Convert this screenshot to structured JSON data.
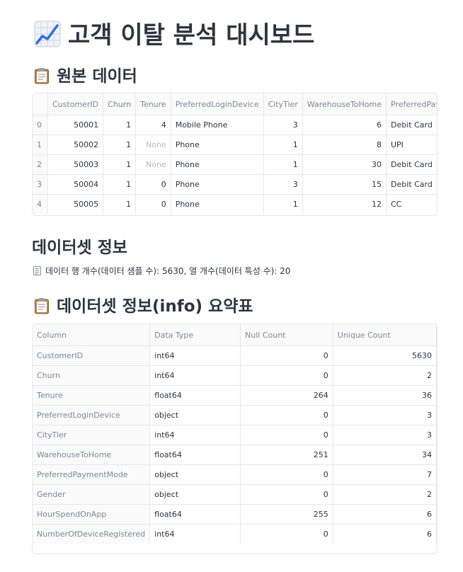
{
  "page": {
    "title": "고객 이탈 분석 대시보드",
    "title_icon": "chart-increasing-icon"
  },
  "raw_section": {
    "title": "원본 데이터",
    "icon": "clipboard-icon",
    "columns": [
      "",
      "CustomerID",
      "Churn",
      "Tenure",
      "PreferredLoginDevice",
      "CityTier",
      "WarehouseToHome",
      "PreferredPaymentMode"
    ],
    "rows": [
      {
        "idx": "0",
        "CustomerID": "50001",
        "Churn": "1",
        "Tenure": "4",
        "PreferredLoginDevice": "Mobile Phone",
        "CityTier": "3",
        "WarehouseToHome": "6",
        "PreferredPaymentMode": "Debit Card"
      },
      {
        "idx": "1",
        "CustomerID": "50002",
        "Churn": "1",
        "Tenure": "None",
        "PreferredLoginDevice": "Phone",
        "CityTier": "1",
        "WarehouseToHome": "8",
        "PreferredPaymentMode": "UPI"
      },
      {
        "idx": "2",
        "CustomerID": "50003",
        "Churn": "1",
        "Tenure": "None",
        "PreferredLoginDevice": "Phone",
        "CityTier": "1",
        "WarehouseToHome": "30",
        "PreferredPaymentMode": "Debit Card"
      },
      {
        "idx": "3",
        "CustomerID": "50004",
        "Churn": "1",
        "Tenure": "0",
        "PreferredLoginDevice": "Phone",
        "CityTier": "3",
        "WarehouseToHome": "15",
        "PreferredPaymentMode": "Debit Card"
      },
      {
        "idx": "4",
        "CustomerID": "50005",
        "Churn": "1",
        "Tenure": "0",
        "PreferredLoginDevice": "Phone",
        "CityTier": "1",
        "WarehouseToHome": "12",
        "PreferredPaymentMode": "CC"
      }
    ]
  },
  "info_section": {
    "title": "데이터셋 정보",
    "caption_icon": "document-icon",
    "caption": "데이터 행 개수(데이터 샘플 수): 5630, 열 개수(데이터 특성 수): 20"
  },
  "summary_section": {
    "title": "데이터셋 정보(info) 요약표",
    "icon": "clipboard-icon",
    "columns": [
      "Column",
      "Data Type",
      "Null Count",
      "Unique Count"
    ],
    "rows": [
      {
        "column": "CustomerID",
        "dtype": "int64",
        "null": "0",
        "unique": "5630"
      },
      {
        "column": "Churn",
        "dtype": "int64",
        "null": "0",
        "unique": "2"
      },
      {
        "column": "Tenure",
        "dtype": "float64",
        "null": "264",
        "unique": "36"
      },
      {
        "column": "PreferredLoginDevice",
        "dtype": "object",
        "null": "0",
        "unique": "3"
      },
      {
        "column": "CityTier",
        "dtype": "int64",
        "null": "0",
        "unique": "3"
      },
      {
        "column": "WarehouseToHome",
        "dtype": "float64",
        "null": "251",
        "unique": "34"
      },
      {
        "column": "PreferredPaymentMode",
        "dtype": "object",
        "null": "0",
        "unique": "7"
      },
      {
        "column": "Gender",
        "dtype": "object",
        "null": "0",
        "unique": "2"
      },
      {
        "column": "HourSpendOnApp",
        "dtype": "float64",
        "null": "255",
        "unique": "6"
      },
      {
        "column": "NumberOfDeviceRegistered",
        "dtype": "int64",
        "null": "0",
        "unique": "6"
      }
    ]
  },
  "colors": {
    "text": "#31333f",
    "muted": "#808495",
    "border": "#e6e7eb",
    "none_value": "#b6b8c2"
  }
}
